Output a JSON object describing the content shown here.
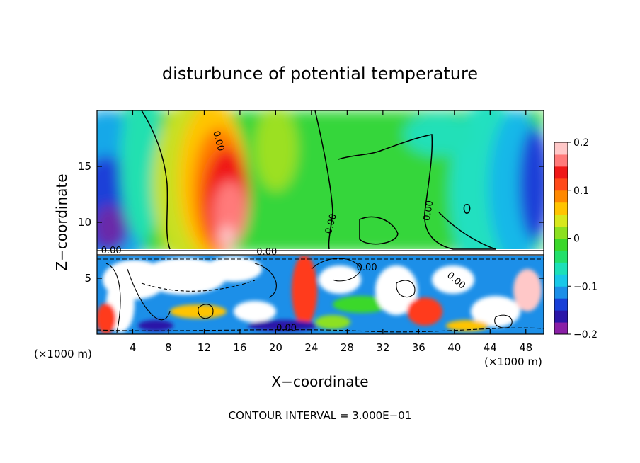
{
  "chart_data": {
    "type": "heatmap",
    "title": "disturbunce of potential temperature",
    "xlabel": "X−coordinate",
    "ylabel": "Z−coordinate",
    "x_unit_left": "(×1000 m)",
    "x_unit_right": "(×1000 m)",
    "xlim": [
      0,
      50
    ],
    "ylim": [
      0,
      20
    ],
    "x_ticks": [
      {
        "value": 4,
        "label": "4"
      },
      {
        "value": 8,
        "label": "8"
      },
      {
        "value": 12,
        "label": "12"
      },
      {
        "value": 16,
        "label": "16"
      },
      {
        "value": 20,
        "label": "20"
      },
      {
        "value": 24,
        "label": "24"
      },
      {
        "value": 28,
        "label": "28"
      },
      {
        "value": 32,
        "label": "32"
      },
      {
        "value": 36,
        "label": "36"
      },
      {
        "value": 40,
        "label": "40"
      },
      {
        "value": 44,
        "label": "44"
      },
      {
        "value": 48,
        "label": "48"
      }
    ],
    "y_ticks": [
      {
        "value": 5,
        "label": "5"
      },
      {
        "value": 10,
        "label": "10"
      },
      {
        "value": 15,
        "label": "15"
      }
    ],
    "colorbar": {
      "min": -0.2,
      "max": 0.2,
      "ticks": [
        {
          "value": 0.2,
          "label": "0.2"
        },
        {
          "value": 0.1,
          "label": "0.1"
        },
        {
          "value": 0,
          "label": "0"
        },
        {
          "value": -0.1,
          "label": "−0.1"
        },
        {
          "value": -0.2,
          "label": "−0.2"
        }
      ],
      "colors": [
        "#8a1fa6",
        "#2b16a8",
        "#1840d8",
        "#1c8fe8",
        "#18c8e8",
        "#1ce0b8",
        "#22e06a",
        "#3ad82a",
        "#8ce020",
        "#d8e81c",
        "#ffc400",
        "#ff8800",
        "#ff4a1a",
        "#f01818",
        "#ff7a7a",
        "#ffc8c8"
      ]
    },
    "contour_labels": [
      {
        "text": "0.00",
        "x": 13.3,
        "y": 17.2,
        "rotate": 75
      },
      {
        "text": "0.00",
        "x": 26.5,
        "y": 9.8,
        "rotate": -75
      },
      {
        "text": "0.00",
        "x": 37.4,
        "y": 11.0,
        "rotate": -80
      },
      {
        "text": "0.00",
        "x": 1.6,
        "y": 7.2,
        "rotate": 0
      },
      {
        "text": "0.00",
        "x": 19.0,
        "y": 7.1,
        "rotate": 0
      },
      {
        "text": "0.00",
        "x": 30.2,
        "y": 5.7,
        "rotate": 0
      },
      {
        "text": "0.00",
        "x": 40.0,
        "y": 4.6,
        "rotate": 40
      },
      {
        "text": "0.00",
        "x": 21.2,
        "y": 0.3,
        "rotate": 0
      }
    ],
    "footer": "CONTOUR INTERVAL = 3.000E−01"
  }
}
